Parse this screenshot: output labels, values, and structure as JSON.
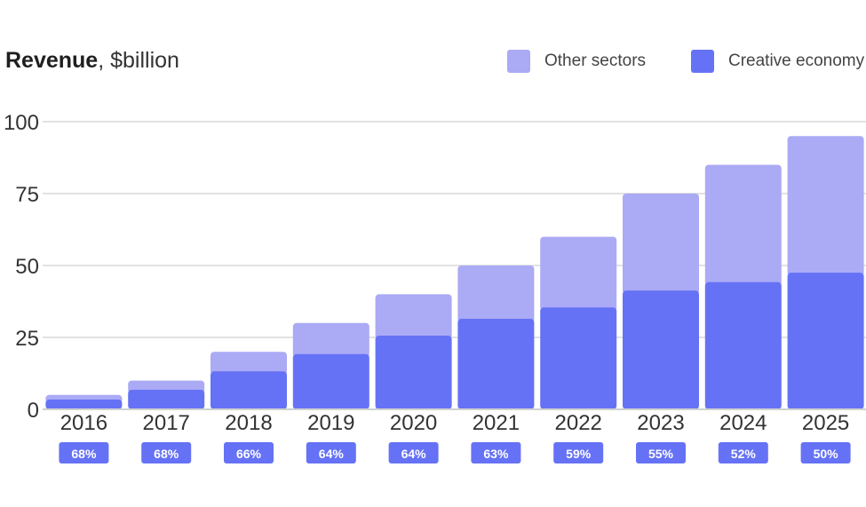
{
  "title": {
    "bold": "Revenue",
    "rest": ", $billion"
  },
  "legend": [
    {
      "label": "Other sectors",
      "color": "#abaaf5"
    },
    {
      "label": "Creative economy",
      "color": "#6672f5"
    }
  ],
  "chart_data": {
    "type": "bar",
    "stacked": true,
    "title": "Revenue, $billion",
    "categories": [
      "2016",
      "2017",
      "2018",
      "2019",
      "2020",
      "2021",
      "2022",
      "2023",
      "2024",
      "2025"
    ],
    "series": [
      {
        "name": "Creative economy",
        "color": "#6672f5",
        "values": [
          3.4,
          6.8,
          13.2,
          19.2,
          25.6,
          31.5,
          35.4,
          41.3,
          44.2,
          47.5
        ]
      },
      {
        "name": "Other sectors",
        "color": "#abaaf5",
        "values": [
          1.6,
          3.2,
          6.8,
          10.8,
          14.4,
          18.5,
          24.6,
          33.7,
          40.8,
          47.5
        ]
      }
    ],
    "totals": [
      5,
      10,
      20,
      30,
      40,
      50,
      60,
      75,
      85,
      95
    ],
    "share_labels": [
      "68%",
      "68%",
      "66%",
      "64%",
      "64%",
      "63%",
      "59%",
      "55%",
      "52%",
      "50%"
    ],
    "yticks": [
      0,
      25,
      50,
      75,
      100
    ],
    "ylim": [
      0,
      100
    ],
    "xlabel": "",
    "ylabel": "$billion"
  }
}
